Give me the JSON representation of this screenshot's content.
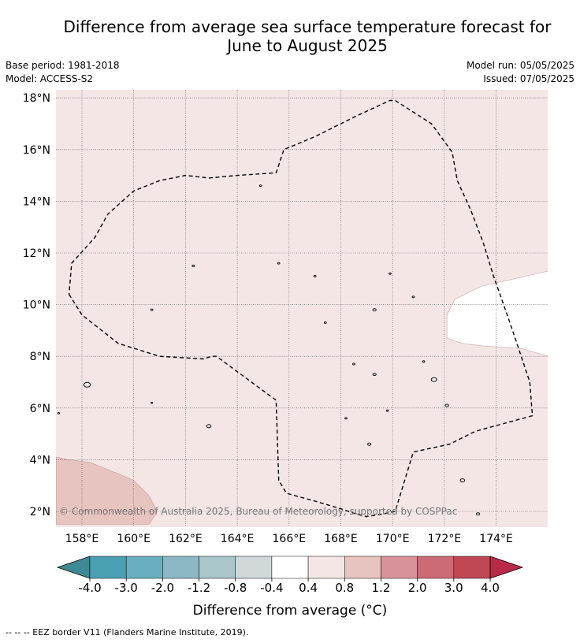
{
  "title": {
    "line1": "Difference from average sea surface temperature forecast for",
    "line2": "June to August 2025"
  },
  "info": {
    "base_period": "Base period: 1981-2018",
    "model": "Model: ACCESS-S2",
    "model_run": "Model run: 05/05/2025",
    "issued": "Issued: 07/05/2025"
  },
  "map": {
    "lat_ticks": [
      {
        "value": 18,
        "label": "18°N"
      },
      {
        "value": 16,
        "label": "16°N"
      },
      {
        "value": 14,
        "label": "14°N"
      },
      {
        "value": 12,
        "label": "12°N"
      },
      {
        "value": 10,
        "label": "10°N"
      },
      {
        "value": 8,
        "label": "8°N"
      },
      {
        "value": 6,
        "label": "6°N"
      },
      {
        "value": 4,
        "label": "4°N"
      },
      {
        "value": 2,
        "label": "2°N"
      }
    ],
    "lon_ticks": [
      {
        "value": 158,
        "label": "158°E"
      },
      {
        "value": 160,
        "label": "160°E"
      },
      {
        "value": 162,
        "label": "162°E"
      },
      {
        "value": 164,
        "label": "164°E"
      },
      {
        "value": 166,
        "label": "166°E"
      },
      {
        "value": 168,
        "label": "168°E"
      },
      {
        "value": 170,
        "label": "170°E"
      },
      {
        "value": 172,
        "label": "172°E"
      },
      {
        "value": 174,
        "label": "174°E"
      }
    ],
    "copyright": "© Commonwealth of Australia 2025, Bureau of Meteorology, supported by COSPPac",
    "eez_border": [
      [
        157.5,
        10.4
      ],
      [
        158.0,
        9.6
      ],
      [
        159.4,
        8.5
      ],
      [
        161.0,
        8.0
      ],
      [
        162.7,
        7.9
      ],
      [
        163.0,
        8.0
      ],
      [
        163.2,
        8.0
      ],
      [
        165.5,
        6.3
      ],
      [
        165.6,
        3.2
      ],
      [
        165.9,
        2.7
      ],
      [
        167.0,
        2.4
      ],
      [
        168.0,
        2.1
      ],
      [
        168.6,
        1.9
      ],
      [
        169.0,
        1.8
      ],
      [
        169.6,
        1.9
      ],
      [
        170.1,
        2.0
      ],
      [
        170.8,
        4.3
      ],
      [
        172.2,
        4.6
      ],
      [
        173.2,
        5.1
      ],
      [
        175.4,
        5.7
      ],
      [
        175.3,
        7.0
      ],
      [
        174.9,
        8.2
      ],
      [
        174.5,
        9.4
      ],
      [
        173.9,
        11.1
      ],
      [
        173.5,
        12.4
      ],
      [
        173.0,
        13.7
      ],
      [
        172.5,
        14.8
      ],
      [
        172.3,
        15.9
      ],
      [
        171.5,
        17.0
      ],
      [
        170.1,
        17.9
      ],
      [
        169.9,
        17.9
      ],
      [
        168.6,
        17.3
      ],
      [
        167.0,
        16.5
      ],
      [
        165.8,
        16.0
      ],
      [
        165.5,
        15.1
      ],
      [
        164.0,
        15.0
      ],
      [
        162.9,
        14.9
      ],
      [
        162.0,
        15.0
      ],
      [
        161.0,
        14.8
      ],
      [
        160.0,
        14.4
      ],
      [
        159.0,
        13.5
      ],
      [
        158.5,
        12.6
      ],
      [
        157.6,
        11.6
      ]
    ],
    "warm_region": [
      [
        176,
        8.0
      ],
      [
        175.0,
        8.3
      ],
      [
        173.5,
        8.4
      ],
      [
        172.7,
        8.5
      ],
      [
        172.1,
        8.7
      ],
      [
        172.1,
        9.6
      ],
      [
        172.4,
        10.2
      ],
      [
        173.4,
        10.7
      ],
      [
        176,
        11.3
      ]
    ],
    "cool_region": [
      [
        157,
        4.1
      ],
      [
        157.5,
        4.0
      ],
      [
        158.3,
        3.9
      ],
      [
        159.3,
        3.5
      ],
      [
        160.0,
        3.2
      ],
      [
        160.6,
        2.6
      ],
      [
        160.9,
        2.0
      ],
      [
        160.6,
        1.5
      ],
      [
        157,
        1.5
      ]
    ]
  },
  "colorbar": {
    "colors": [
      "#3d8a95",
      "#4aa1b4",
      "#6aafbf",
      "#8cb8c5",
      "#a9c6cb",
      "#d0d8da",
      "#ffffff",
      "#f5e6e6",
      "#e7c4bf",
      "#d9929a",
      "#cc6a76",
      "#c04855",
      "#b82a48"
    ],
    "labels": [
      "-4.0",
      "-3.0",
      "-2.0",
      "-1.2",
      "-0.8",
      "-0.4",
      "0.4",
      "0.8",
      "1.2",
      "2.0",
      "3.0",
      "4.0"
    ],
    "title": "Difference from average (°C)"
  },
  "footer": "--  --  -- EEZ border V11 (Flanders Marine Institute, 2019)."
}
